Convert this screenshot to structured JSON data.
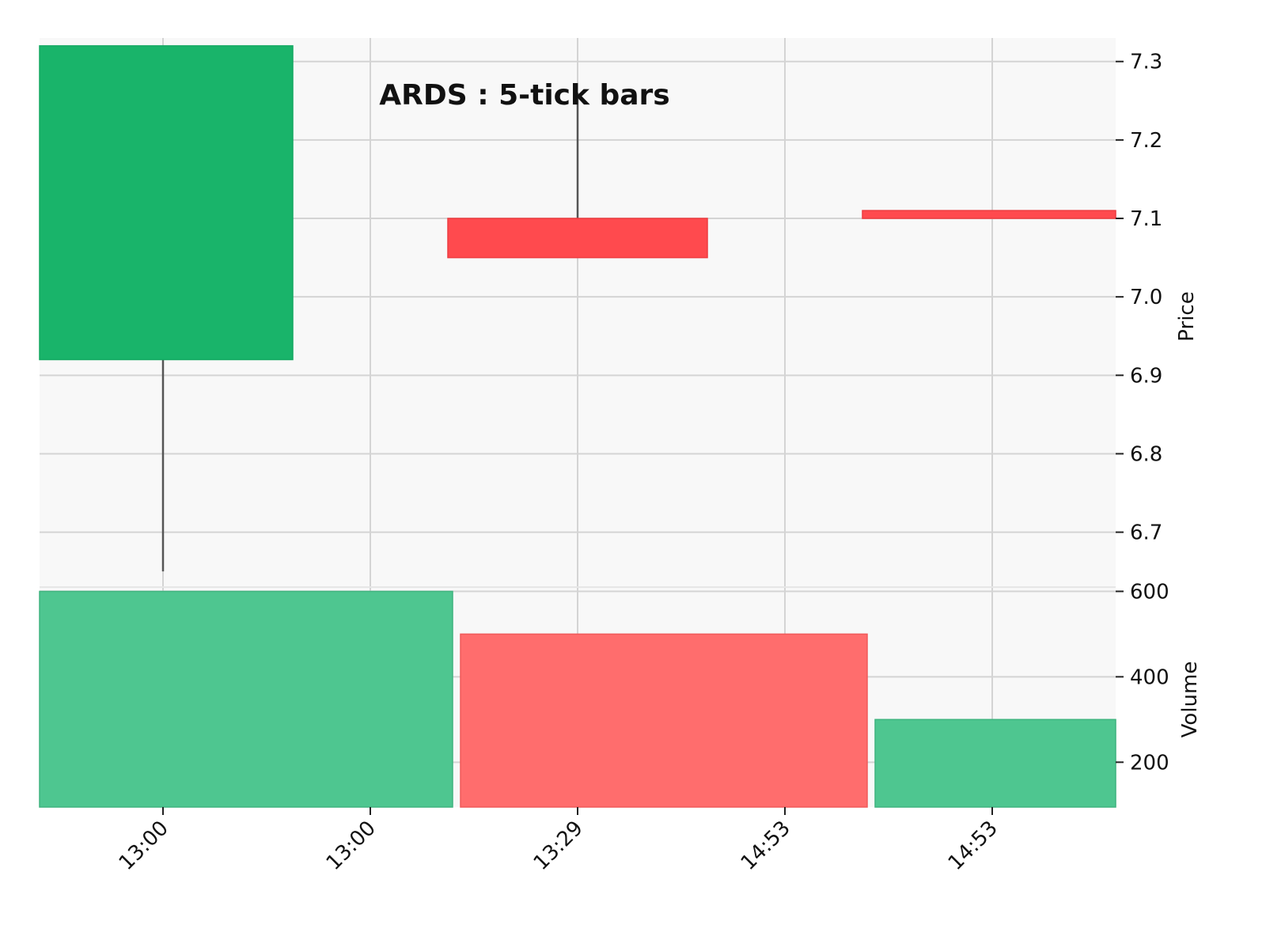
{
  "chart_data": {
    "type": "candlestick",
    "title": "ARDS : 5-tick bars",
    "x_tick_labels": [
      "13:00",
      "13:00",
      "13:29",
      "14:53",
      "14:53"
    ],
    "candles": [
      {
        "open": 6.92,
        "high": 7.32,
        "low": 6.65,
        "close": 7.32,
        "direction": "up"
      },
      {
        "open": 7.1,
        "high": 7.26,
        "low": 7.05,
        "close": 7.05,
        "direction": "down"
      },
      {
        "open": 7.11,
        "high": 7.11,
        "low": 7.1,
        "close": 7.1,
        "direction": "down"
      }
    ],
    "volume": [
      {
        "value": 600,
        "direction": "up"
      },
      {
        "value": 500,
        "direction": "down"
      },
      {
        "value": 300,
        "direction": "up"
      }
    ],
    "price_axis": {
      "label": "Price",
      "ylim": [
        6.63,
        7.33
      ],
      "ticks": [
        "6.7",
        "6.8",
        "6.9",
        "7.0",
        "7.1",
        "7.2",
        "7.3"
      ]
    },
    "volume_axis": {
      "label": "Volume",
      "ylim": [
        95,
        610
      ],
      "ticks": [
        "200",
        "400",
        "600"
      ]
    },
    "grid": true,
    "colors": {
      "up": "#19b46a",
      "down": "#ff4a4e",
      "volume_up": "#4ec690",
      "volume_down": "#ff6d6d",
      "wick": "#555555",
      "background": "#f8f8f8",
      "grid": "#d4d4d4"
    }
  }
}
